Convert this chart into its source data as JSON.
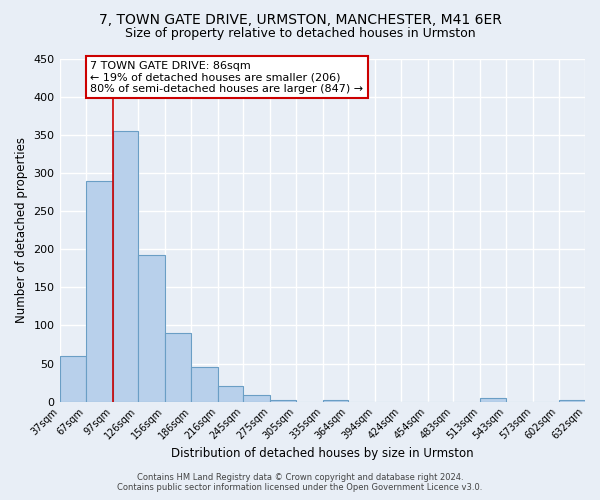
{
  "title1": "7, TOWN GATE DRIVE, URMSTON, MANCHESTER, M41 6ER",
  "title2": "Size of property relative to detached houses in Urmston",
  "xlabel": "Distribution of detached houses by size in Urmston",
  "ylabel": "Number of detached properties",
  "bar_edges": [
    37,
    67,
    97,
    126,
    156,
    186,
    216,
    245,
    275,
    305,
    335,
    364,
    394,
    424,
    454,
    483,
    513,
    543,
    573,
    602,
    632
  ],
  "bar_heights": [
    60,
    290,
    355,
    192,
    90,
    46,
    20,
    9,
    2,
    0,
    2,
    0,
    0,
    0,
    0,
    0,
    5,
    0,
    0,
    2
  ],
  "bar_color": "#b8d0eb",
  "bar_edge_color": "#6a9ec5",
  "tick_labels": [
    "37sqm",
    "67sqm",
    "97sqm",
    "126sqm",
    "156sqm",
    "186sqm",
    "216sqm",
    "245sqm",
    "275sqm",
    "305sqm",
    "335sqm",
    "364sqm",
    "394sqm",
    "424sqm",
    "454sqm",
    "483sqm",
    "513sqm",
    "543sqm",
    "573sqm",
    "602sqm",
    "632sqm"
  ],
  "ylim": [
    0,
    450
  ],
  "yticks": [
    0,
    50,
    100,
    150,
    200,
    250,
    300,
    350,
    400,
    450
  ],
  "vline_x": 97,
  "vline_color": "#cc0000",
  "annotation_title": "7 TOWN GATE DRIVE: 86sqm",
  "annotation_line1": "← 19% of detached houses are smaller (206)",
  "annotation_line2": "80% of semi-detached houses are larger (847) →",
  "annotation_box_color": "#cc0000",
  "footer1": "Contains HM Land Registry data © Crown copyright and database right 2024.",
  "footer2": "Contains public sector information licensed under the Open Government Licence v3.0.",
  "background_color": "#e8eef6",
  "grid_color": "#ffffff",
  "title1_fontsize": 10,
  "title2_fontsize": 9
}
